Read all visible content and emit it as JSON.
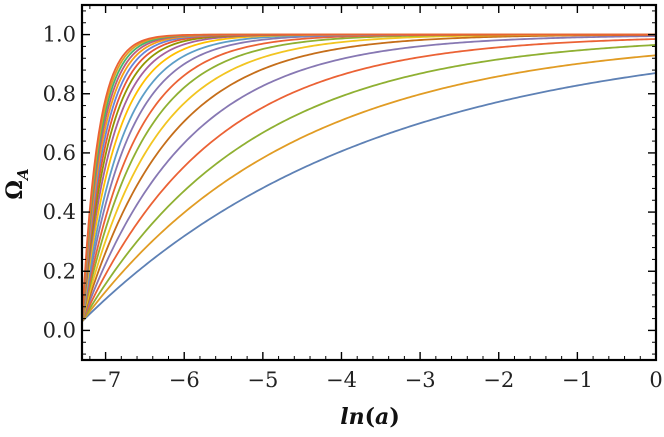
{
  "chart_data": {
    "type": "line",
    "title": "",
    "xlabel": "ln(a)",
    "ylabel": "Ω_A",
    "xlabel_parts": {
      "fn": "ln",
      "arg": "a"
    },
    "ylabel_parts": {
      "base": "Ω",
      "sub": "A"
    },
    "xlim": [
      -7.3,
      0
    ],
    "ylim": [
      -0.1,
      1.1
    ],
    "x_ticks": [
      -7,
      -6,
      -5,
      -4,
      -3,
      -2,
      -1,
      0
    ],
    "x_tick_labels": [
      "−7",
      "−6",
      "−5",
      "−4",
      "−3",
      "−2",
      "−1",
      "0"
    ],
    "y_ticks": [
      0.0,
      0.2,
      0.4,
      0.6,
      0.8,
      1.0
    ],
    "y_tick_labels": [
      "0.0",
      "0.2",
      "0.4",
      "0.6",
      "0.8",
      "1.0"
    ],
    "grid": false,
    "legend": "none",
    "x_start": -7.3,
    "x_end": 0,
    "series_start_value": 0.03,
    "series": [
      {
        "color": "#5e81b5",
        "rate": 0.27,
        "end_value": 0.87
      },
      {
        "color": "#e19c24",
        "rate": 0.37,
        "end_value": 0.93
      },
      {
        "color": "#8fb032",
        "rate": 0.47,
        "end_value": 0.965
      },
      {
        "color": "#eb6235",
        "rate": 0.6,
        "end_value": 0.985
      },
      {
        "color": "#8778b3",
        "rate": 0.75,
        "end_value": 0.995
      },
      {
        "color": "#c56e1a",
        "rate": 0.92,
        "end_value": 0.999
      },
      {
        "color": "#f2c521",
        "rate": 1.1,
        "end_value": 1.0
      },
      {
        "color": "#8fb032",
        "rate": 1.3,
        "end_value": 1.0
      },
      {
        "color": "#eb6235",
        "rate": 1.5,
        "end_value": 1.0
      },
      {
        "color": "#8778b3",
        "rate": 1.75,
        "end_value": 1.0
      },
      {
        "color": "#5d9ec7",
        "rate": 2.0,
        "end_value": 1.0
      },
      {
        "color": "#ffbf00",
        "rate": 2.3,
        "end_value": 1.0
      },
      {
        "color": "#a5609d",
        "rate": 2.6,
        "end_value": 1.0
      },
      {
        "color": "#929600",
        "rate": 2.9,
        "end_value": 1.0
      },
      {
        "color": "#e95536",
        "rate": 3.2,
        "end_value": 1.0
      },
      {
        "color": "#6685d9",
        "rate": 3.5,
        "end_value": 1.0
      },
      {
        "color": "#f89f13",
        "rate": 3.8,
        "end_value": 1.0
      },
      {
        "color": "#bc5b80",
        "rate": 4.1,
        "end_value": 1.0
      },
      {
        "color": "#47b66d",
        "rate": 4.4,
        "end_value": 1.0
      },
      {
        "color": "#e19c24",
        "rate": 4.7,
        "end_value": 1.0
      },
      {
        "color": "#eb6235",
        "rate": 5.0,
        "end_value": 1.0
      }
    ]
  }
}
